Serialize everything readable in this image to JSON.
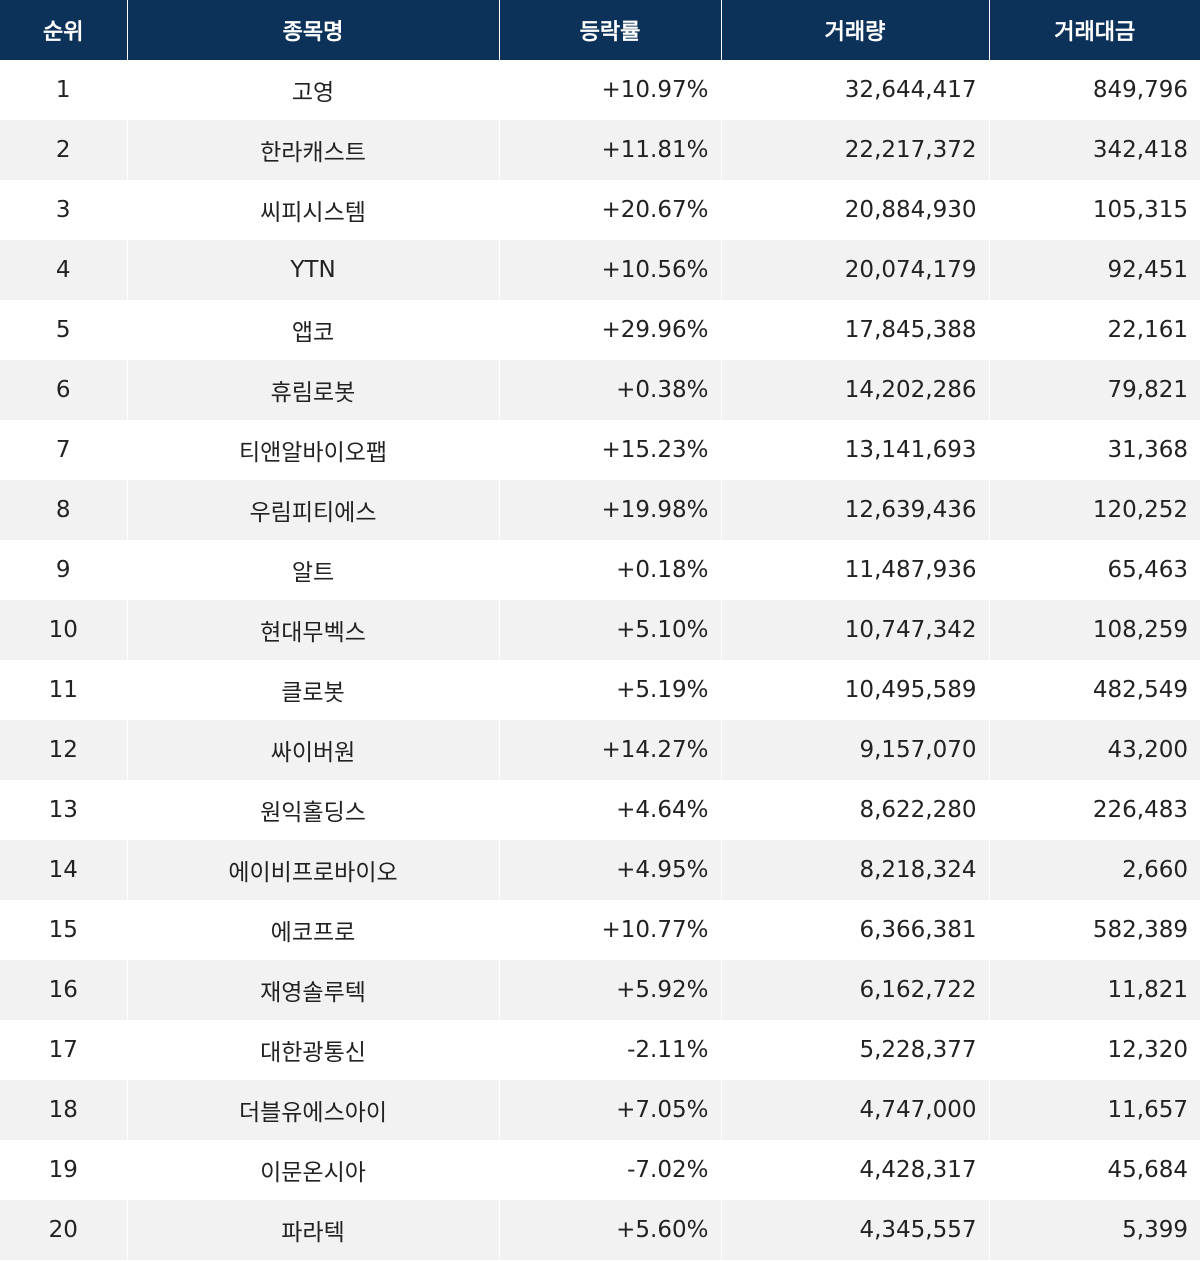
{
  "table": {
    "headers": {
      "rank": "순위",
      "name": "종목명",
      "change": "등락률",
      "volume": "거래량",
      "amount": "거래대금"
    },
    "rows": [
      {
        "rank": "1",
        "name": "고영",
        "change": "+10.97%",
        "volume": "32,644,417",
        "amount": "849,796"
      },
      {
        "rank": "2",
        "name": "한라캐스트",
        "change": "+11.81%",
        "volume": "22,217,372",
        "amount": "342,418"
      },
      {
        "rank": "3",
        "name": "씨피시스템",
        "change": "+20.67%",
        "volume": "20,884,930",
        "amount": "105,315"
      },
      {
        "rank": "4",
        "name": "YTN",
        "change": "+10.56%",
        "volume": "20,074,179",
        "amount": "92,451"
      },
      {
        "rank": "5",
        "name": "앱코",
        "change": "+29.96%",
        "volume": "17,845,388",
        "amount": "22,161"
      },
      {
        "rank": "6",
        "name": "휴림로봇",
        "change": "+0.38%",
        "volume": "14,202,286",
        "amount": "79,821"
      },
      {
        "rank": "7",
        "name": "티앤알바이오팹",
        "change": "+15.23%",
        "volume": "13,141,693",
        "amount": "31,368"
      },
      {
        "rank": "8",
        "name": "우림피티에스",
        "change": "+19.98%",
        "volume": "12,639,436",
        "amount": "120,252"
      },
      {
        "rank": "9",
        "name": "알트",
        "change": "+0.18%",
        "volume": "11,487,936",
        "amount": "65,463"
      },
      {
        "rank": "10",
        "name": "현대무벡스",
        "change": "+5.10%",
        "volume": "10,747,342",
        "amount": "108,259"
      },
      {
        "rank": "11",
        "name": "클로봇",
        "change": "+5.19%",
        "volume": "10,495,589",
        "amount": "482,549"
      },
      {
        "rank": "12",
        "name": "싸이버원",
        "change": "+14.27%",
        "volume": "9,157,070",
        "amount": "43,200"
      },
      {
        "rank": "13",
        "name": "원익홀딩스",
        "change": "+4.64%",
        "volume": "8,622,280",
        "amount": "226,483"
      },
      {
        "rank": "14",
        "name": "에이비프로바이오",
        "change": "+4.95%",
        "volume": "8,218,324",
        "amount": "2,660"
      },
      {
        "rank": "15",
        "name": "에코프로",
        "change": "+10.77%",
        "volume": "6,366,381",
        "amount": "582,389"
      },
      {
        "rank": "16",
        "name": "재영솔루텍",
        "change": "+5.92%",
        "volume": "6,162,722",
        "amount": "11,821"
      },
      {
        "rank": "17",
        "name": "대한광통신",
        "change": "-2.11%",
        "volume": "5,228,377",
        "amount": "12,320"
      },
      {
        "rank": "18",
        "name": "더블유에스아이",
        "change": "+7.05%",
        "volume": "4,747,000",
        "amount": "11,657"
      },
      {
        "rank": "19",
        "name": "이문온시아",
        "change": "-7.02%",
        "volume": "4,428,317",
        "amount": "45,684"
      },
      {
        "rank": "20",
        "name": "파라텍",
        "change": "+5.60%",
        "volume": "4,345,557",
        "amount": "5,399"
      }
    ]
  },
  "colors": {
    "header_bg": "#0c3259",
    "header_text": "#ffffff",
    "row_alt_bg": "#f2f2f2",
    "text": "#222222"
  }
}
